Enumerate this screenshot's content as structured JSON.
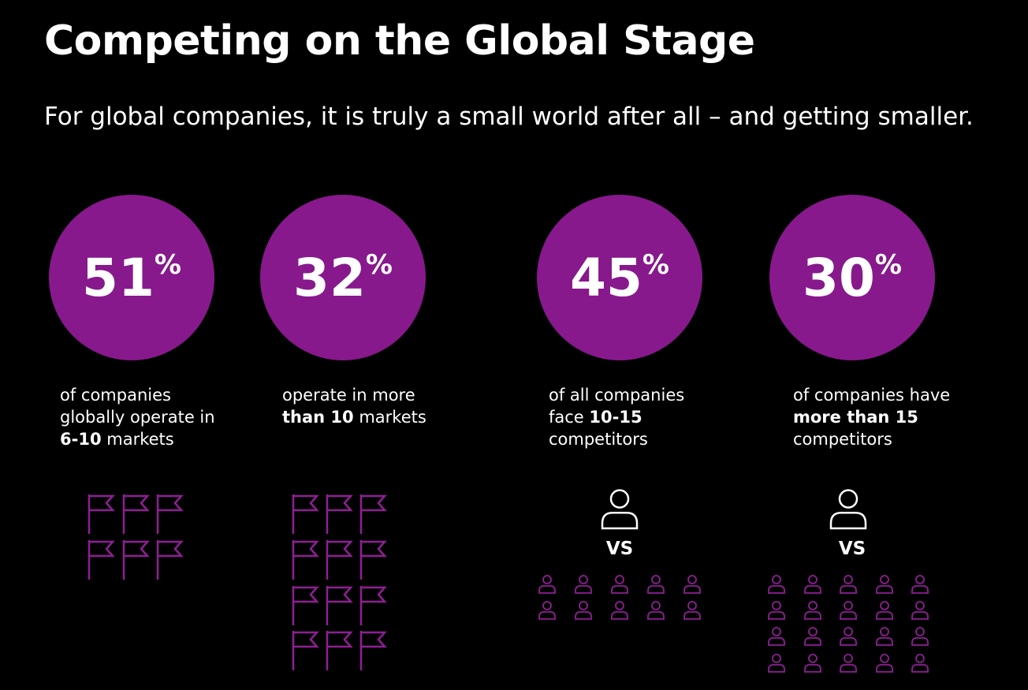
{
  "header": {
    "title": "Competing on the Global Stage",
    "subtitle": "For global companies, it is truly a small world after all – and getting smaller."
  },
  "stats": [
    {
      "value": "51",
      "unit": "%",
      "description": [
        [
          {
            "text": "of companies"
          }
        ],
        [
          {
            "text": "globally operate in"
          }
        ],
        [
          {
            "text": "6-10",
            "bold": true
          },
          {
            "text": " markets"
          }
        ]
      ]
    },
    {
      "value": "32",
      "unit": "%",
      "description": [
        [
          {
            "text": "operate in more"
          }
        ],
        [
          {
            "text": "than 10",
            "bold": true
          },
          {
            "text": " markets"
          }
        ]
      ]
    },
    {
      "value": "45",
      "unit": "%",
      "description": [
        [
          {
            "text": "of all companies"
          }
        ],
        [
          {
            "text": "face "
          },
          {
            "text": "10-15",
            "bold": true
          }
        ],
        [
          {
            "text": "competitors"
          }
        ]
      ],
      "vs": "VS"
    },
    {
      "value": "30",
      "unit": "%",
      "description": [
        [
          {
            "text": "of companies have"
          }
        ],
        [
          {
            "text": "more than 15",
            "bold": true
          }
        ],
        [
          {
            "text": "competitors"
          }
        ]
      ],
      "vs": "VS"
    }
  ]
}
